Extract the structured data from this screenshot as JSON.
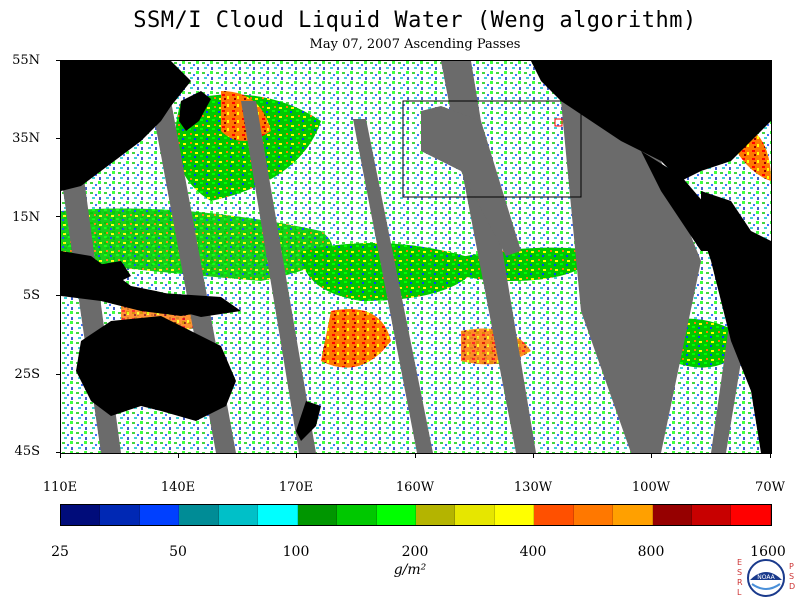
{
  "title": "SSM/I Cloud Liquid Water (Weng algorithm)",
  "subtitle": "May 07, 2007  Ascending Passes",
  "map": {
    "lat_labels": [
      "55N",
      "35N",
      "15N",
      "5S",
      "25S",
      "45S"
    ],
    "lon_labels": [
      "110E",
      "140E",
      "170E",
      "160W",
      "130W",
      "100W",
      "70W"
    ],
    "land_color": "#000000",
    "no_data_color": "#6b6b6b",
    "highlight_box_color": "#000000",
    "marker_color": "#ff0000"
  },
  "legend": {
    "colors": [
      "#000c7a",
      "#0028b4",
      "#0040ff",
      "#008c96",
      "#00c0c8",
      "#00ffff",
      "#009600",
      "#00c800",
      "#00ff00",
      "#b4b400",
      "#e6e600",
      "#ffff00",
      "#ff5000",
      "#ff7800",
      "#ffa000",
      "#960000",
      "#c80000",
      "#ff0000"
    ],
    "labels": [
      "25",
      "50",
      "100",
      "200",
      "400",
      "800",
      "1600"
    ],
    "units": "g/m²"
  },
  "logo": {
    "left_letters": [
      "E",
      "S",
      "R",
      "L"
    ],
    "right_letters": [
      "P",
      "S",
      "D"
    ],
    "center_text": "NOAA"
  }
}
